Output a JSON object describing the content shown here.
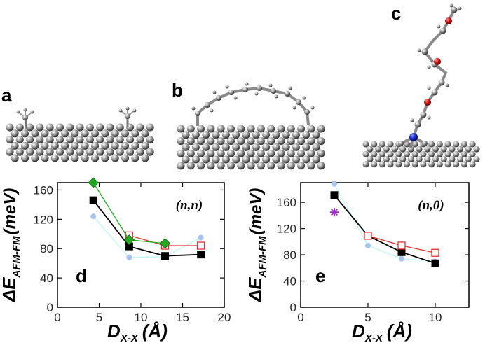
{
  "panels": {
    "a": {
      "label": "a"
    },
    "b": {
      "label": "b"
    },
    "c": {
      "label": "c"
    }
  },
  "chart_data": [
    {
      "type": "line",
      "panel_label": "d",
      "annotation": "(n,n)",
      "xlabel": {
        "main": "D",
        "sub": "X-X",
        "unit": "(Å)"
      },
      "ylabel": {
        "delta": "Δ",
        "main": "E",
        "sub": "AFM-FM",
        "unit": "(meV)"
      },
      "xlim": [
        0,
        20
      ],
      "ylim": [
        0,
        170
      ],
      "xticks": [
        0,
        5,
        10,
        15,
        20
      ],
      "yticks": [
        0,
        40,
        80,
        120,
        160
      ],
      "series": [
        {
          "name": "light-blue-circles",
          "color": "#a9c4f2",
          "line_color": "#bff5f5",
          "marker": "circle",
          "filled": true,
          "x": [
            4.3,
            8.6,
            12.9,
            17.2
          ],
          "y": [
            124,
            68,
            69,
            95
          ]
        },
        {
          "name": "black-squares",
          "color": "#000000",
          "line_color": "#000000",
          "marker": "square",
          "filled": true,
          "x": [
            4.3,
            8.6,
            12.9,
            17.2
          ],
          "y": [
            146,
            83,
            70,
            72
          ]
        },
        {
          "name": "red-open-squares",
          "color": "#e03030",
          "line_color": "#e03030",
          "marker": "square",
          "filled": false,
          "x": [
            8.6,
            12.9,
            17.2
          ],
          "y": [
            98,
            84,
            84
          ]
        },
        {
          "name": "green-diamonds",
          "color": "#22aa22",
          "line_color": "#22aa22",
          "marker": "diamond",
          "filled": true,
          "x": [
            4.3,
            8.6,
            12.9
          ],
          "y": [
            170,
            92,
            87
          ]
        }
      ]
    },
    {
      "type": "line",
      "panel_label": "e",
      "annotation": "(n,0)",
      "xlabel": {
        "main": "D",
        "sub": "X-X",
        "unit": "(Å)"
      },
      "ylabel": {
        "delta": "Δ",
        "main": "E",
        "sub": "AFM-FM",
        "unit": "(meV)"
      },
      "xlim": [
        0,
        12.5
      ],
      "ylim": [
        0,
        190
      ],
      "xticks": [
        0,
        5,
        10
      ],
      "yticks": [
        0,
        40,
        80,
        120,
        160
      ],
      "series": [
        {
          "name": "light-blue-circles",
          "color": "#a9c4f2",
          "line_color": "#bff5f5",
          "marker": "circle",
          "filled": true,
          "x": [
            2.5,
            5,
            7.5,
            10
          ],
          "y": [
            188,
            94,
            74,
            70
          ]
        },
        {
          "name": "black-squares",
          "color": "#000000",
          "line_color": "#000000",
          "marker": "square",
          "filled": true,
          "x": [
            2.5,
            5,
            7.5,
            10
          ],
          "y": [
            171,
            109,
            84,
            67
          ]
        },
        {
          "name": "red-open-squares",
          "color": "#e03030",
          "line_color": "#e03030",
          "marker": "square",
          "filled": false,
          "x": [
            5,
            7.5,
            10
          ],
          "y": [
            109,
            94,
            83
          ]
        },
        {
          "name": "purple-star",
          "color": "#a030c8",
          "line_color": "none",
          "marker": "star",
          "filled": true,
          "x": [
            2.5
          ],
          "y": [
            145
          ]
        }
      ]
    }
  ]
}
